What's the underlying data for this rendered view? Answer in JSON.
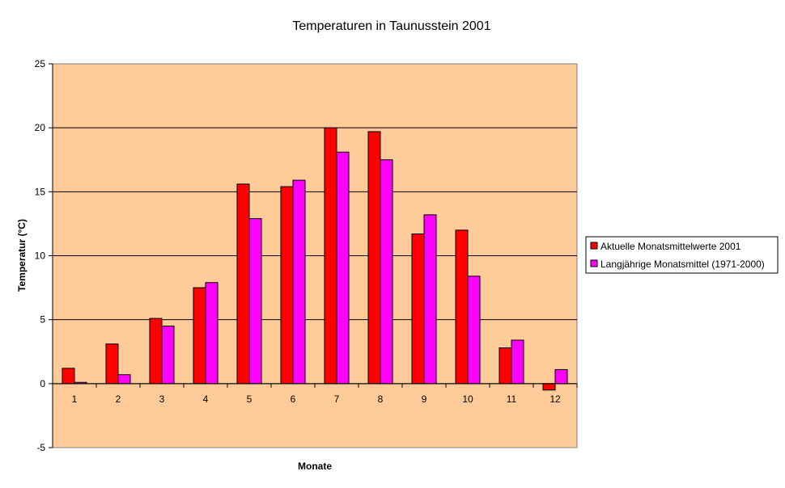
{
  "chart_data": {
    "type": "bar",
    "title": "Temperaturen in Taunusstein 2001",
    "xlabel": "Monate",
    "ylabel": "Temperatur (°C)",
    "ylim": [
      -5,
      25
    ],
    "yticks": [
      -5,
      0,
      5,
      10,
      15,
      20,
      25
    ],
    "categories": [
      "1",
      "2",
      "3",
      "4",
      "5",
      "6",
      "7",
      "8",
      "9",
      "10",
      "11",
      "12"
    ],
    "grid": true,
    "legend_position": "right",
    "plot_background": "#FFCC99",
    "series": [
      {
        "name": "Aktuelle Monatsmittelwerte 2001",
        "color": "#FF0000",
        "values": [
          1.2,
          3.1,
          5.1,
          7.5,
          15.6,
          15.4,
          20.0,
          19.7,
          11.7,
          12.0,
          2.8,
          -0.5
        ]
      },
      {
        "name": "Langjährige Monatsmittel (1971-2000)",
        "color": "#FF00FF",
        "values": [
          0.1,
          0.7,
          4.5,
          7.9,
          12.9,
          15.9,
          18.1,
          17.5,
          13.2,
          8.4,
          3.4,
          1.1
        ]
      }
    ]
  }
}
